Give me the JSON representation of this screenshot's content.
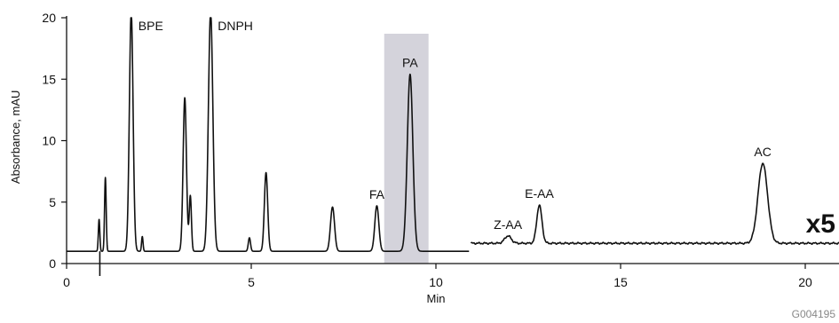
{
  "chart_data": {
    "type": "line",
    "title": "",
    "xlabel": "Min",
    "ylabel": "Absorbance, mAU",
    "xlim": [
      0,
      21
    ],
    "ylim": [
      0,
      20
    ],
    "x_ticks": [
      0,
      5,
      10,
      15,
      20
    ],
    "y_ticks": [
      0,
      5,
      10,
      15,
      20
    ],
    "grid": false,
    "highlight_region": {
      "x": [
        8.6,
        9.8
      ],
      "y": [
        0,
        18.7
      ],
      "color": "#d4d3db"
    },
    "scale_annotation": {
      "text": "x5",
      "applies_from_x": 10.95
    },
    "figure_code": "G004195",
    "baseline": 1.0,
    "baseline_scaled": 1.65,
    "series": [
      {
        "segment": "normal scale",
        "peaks": [
          {
            "label": "",
            "rt": 0.88,
            "height": 2.6,
            "sigma": 0.02
          },
          {
            "label": "",
            "rt": 1.05,
            "height": 6.0,
            "sigma": 0.022
          },
          {
            "label": "BPE",
            "rt": 1.75,
            "height": 19.5,
            "sigma": 0.05,
            "clipped": true
          },
          {
            "label": "",
            "rt": 2.05,
            "height": 1.2,
            "sigma": 0.02
          },
          {
            "label": "",
            "rt": 3.2,
            "height": 12.5,
            "sigma": 0.045
          },
          {
            "label": "",
            "rt": 3.35,
            "height": 4.5,
            "sigma": 0.03
          },
          {
            "label": "DNPH",
            "rt": 3.9,
            "height": 19.5,
            "sigma": 0.06,
            "clipped": true
          },
          {
            "label": "",
            "rt": 4.95,
            "height": 1.1,
            "sigma": 0.03
          },
          {
            "label": "",
            "rt": 5.4,
            "height": 6.4,
            "sigma": 0.045
          },
          {
            "label": "",
            "rt": 7.2,
            "height": 3.6,
            "sigma": 0.055
          },
          {
            "label": "FA",
            "rt": 8.4,
            "height": 3.7,
            "sigma": 0.055
          },
          {
            "label": "PA",
            "rt": 9.3,
            "height": 14.4,
            "sigma": 0.075
          }
        ]
      },
      {
        "segment": "x5 scale",
        "peaks": [
          {
            "label": "Z-AA",
            "rt": 11.95,
            "height": 0.6,
            "sigma": 0.09
          },
          {
            "label": "E-AA",
            "rt": 12.8,
            "height": 3.1,
            "sigma": 0.07
          },
          {
            "label": "AC",
            "rt": 18.85,
            "height": 6.5,
            "sigma": 0.13
          }
        ]
      }
    ]
  }
}
